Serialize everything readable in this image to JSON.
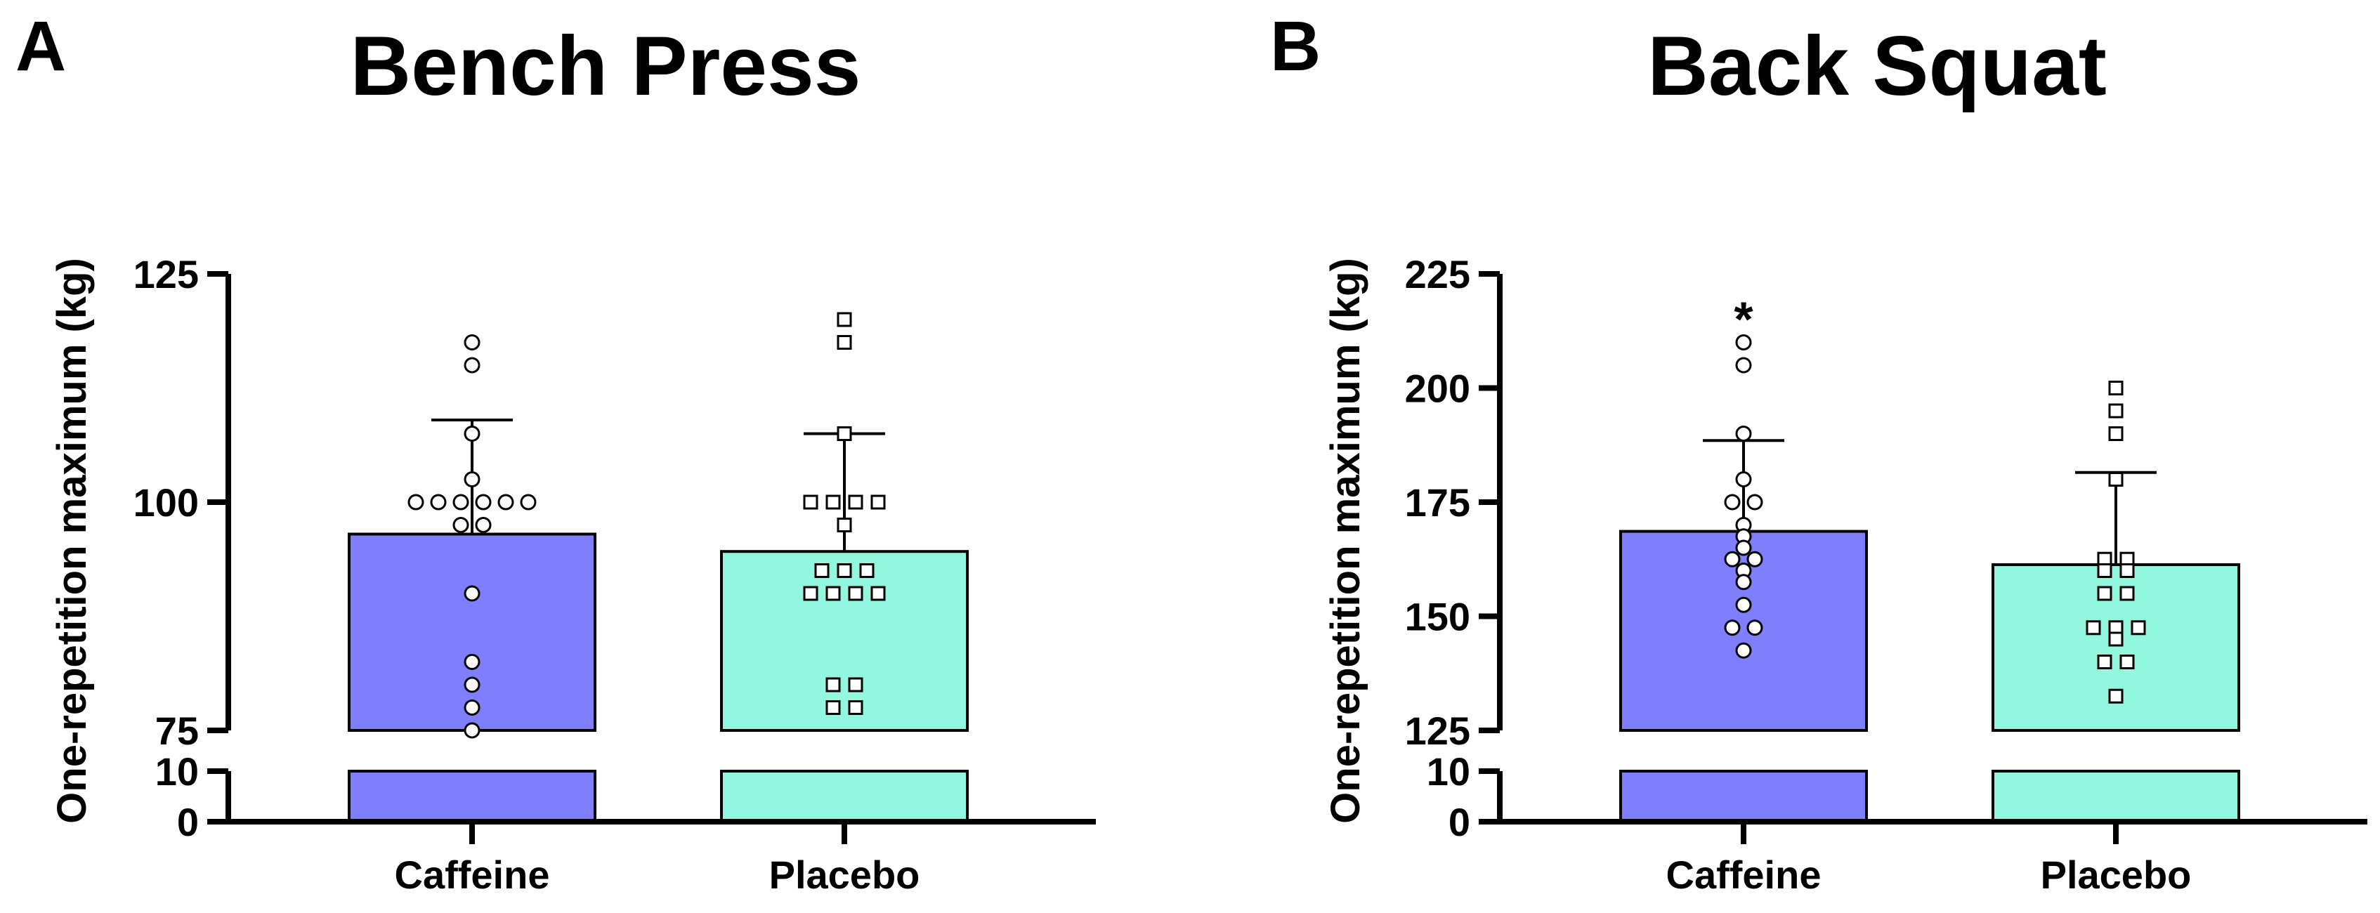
{
  "chart_data": [
    {
      "type": "bar",
      "panel_label": "A",
      "title": "Bench Press",
      "ylabel": "One-repetition maximum (kg)",
      "xlabel": "",
      "ylim": [
        75,
        125
      ],
      "yticks": [
        75,
        100,
        125
      ],
      "axis_break": {
        "lower_ticks": [
          0,
          10
        ]
      },
      "categories": [
        "Caffeine",
        "Placebo"
      ],
      "colors": [
        "#7f7ffd",
        "#93f7e0"
      ],
      "markers": [
        "circle",
        "square"
      ],
      "means": [
        96.5,
        94.6
      ],
      "sd_upper": [
        109,
        107.5
      ],
      "individual_points": [
        [
          117.5,
          115,
          107.5,
          102.5,
          100,
          100,
          100,
          100,
          100,
          100,
          97.5,
          97.5,
          90,
          82.5,
          80,
          77.5,
          75
        ],
        [
          120,
          117.5,
          107.5,
          100,
          100,
          100,
          100,
          97.5,
          92.5,
          92.5,
          92.5,
          90,
          90,
          90,
          90,
          80,
          80,
          77.5,
          77.5
        ]
      ],
      "annotations": []
    },
    {
      "type": "bar",
      "panel_label": "B",
      "title": "Back Squat",
      "ylabel": "One-repetition maximum (kg)",
      "xlabel": "",
      "ylim": [
        125,
        225
      ],
      "yticks": [
        125,
        150,
        175,
        200,
        225
      ],
      "axis_break": {
        "lower_ticks": [
          0,
          10
        ]
      },
      "categories": [
        "Caffeine",
        "Placebo"
      ],
      "colors": [
        "#7f7ffd",
        "#93f7e0"
      ],
      "markers": [
        "circle",
        "square"
      ],
      "means": [
        168.6,
        161.3
      ],
      "sd_upper": [
        188.5,
        181.5
      ],
      "individual_points": [
        [
          210,
          205,
          190,
          180,
          175,
          175,
          170,
          167.5,
          165,
          162.5,
          162.5,
          160,
          157.5,
          152.5,
          147.5,
          147.5,
          142.5
        ],
        [
          200,
          195,
          190,
          180,
          162.5,
          162.5,
          160,
          160,
          155,
          155,
          147.5,
          147.5,
          147.5,
          145,
          140,
          140,
          132.5
        ]
      ],
      "annotations": [
        {
          "text": "*",
          "category": "Caffeine",
          "value": 216
        }
      ]
    }
  ]
}
